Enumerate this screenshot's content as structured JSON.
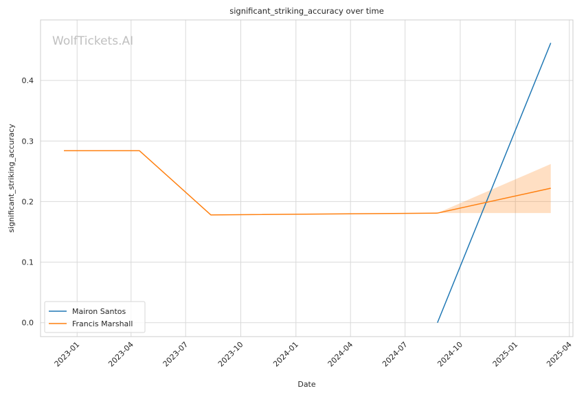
{
  "chart_data": {
    "type": "line",
    "title": "significant_striking_accuracy over time",
    "xlabel": "Date",
    "ylabel": "significant_striking_accuracy",
    "watermark": "WolfTickets.AI",
    "xlim": [
      "2022-11-01",
      "2025-04-07"
    ],
    "ylim": [
      -0.023,
      0.5
    ],
    "x_ticks": [
      "2023-01",
      "2023-04",
      "2023-07",
      "2023-10",
      "2024-01",
      "2024-04",
      "2024-07",
      "2024-10",
      "2025-01",
      "2025-04"
    ],
    "y_ticks": [
      0.0,
      0.1,
      0.2,
      0.3,
      0.4
    ],
    "y_tick_labels": [
      "0.0",
      "0.1",
      "0.2",
      "0.3",
      "0.4"
    ],
    "grid": true,
    "legend_position": "bottom-left",
    "series": [
      {
        "name": "Mairon Santos",
        "color": "#1f77b4",
        "x": [
          "2024-08-24",
          "2025-03-01"
        ],
        "y": [
          0.0,
          0.462
        ]
      },
      {
        "name": "Francis Marshall",
        "color": "#ff7f0e",
        "x": [
          "2022-12-10",
          "2023-04-15",
          "2023-08-12",
          "2024-08-24",
          "2025-03-01"
        ],
        "y": [
          0.284,
          0.284,
          0.178,
          0.181,
          0.222
        ],
        "band": {
          "x": [
            "2024-08-24",
            "2025-03-01"
          ],
          "lower": [
            0.181,
            0.181
          ],
          "upper": [
            0.181,
            0.262
          ]
        }
      }
    ]
  }
}
